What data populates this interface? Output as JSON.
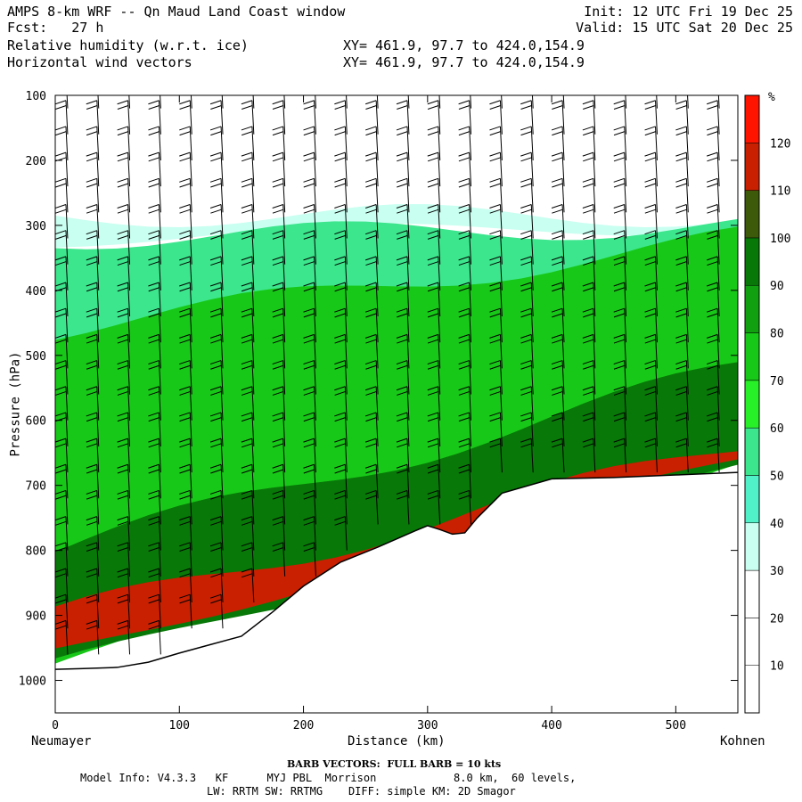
{
  "header": {
    "title": "AMPS 8-km WRF -- Qn Maud Land Coast window",
    "init": "Init: 12 UTC Fri 19 Dec 25",
    "fcst": "Fcst:   27 h",
    "valid": "Valid: 15 UTC Sat 20 Dec 25",
    "field1": "Relative humidity (w.r.t. ice)",
    "field2": "Horizontal wind vectors",
    "xy1": "XY= 461.9, 97.7 to 424.0,154.9",
    "xy2": "XY= 461.9, 97.7 to 424.0,154.9"
  },
  "footer": {
    "barb": "BARB VECTORS:  FULL BARB = 10 kts",
    "line1": "Model Info: V4.3.3   KF      MYJ PBL  Morrison            8.0 km,  60 levels,",
    "line2": "LW: RRTM SW: RRTMG    DIFF: simple KM: 2D Smagor"
  },
  "chart_data": {
    "type": "heatmap",
    "title": "Relative humidity (w.r.t. ice)",
    "xlabel": "Distance (km)",
    "ylabel": "Pressure (hPa)",
    "x_start_label": "Neumayer",
    "x_end_label": "Kohnen",
    "xlim": [
      0,
      550
    ],
    "ylim": [
      1050,
      100
    ],
    "x_ticks": [
      0,
      100,
      200,
      300,
      400,
      500
    ],
    "y_ticks": [
      100,
      200,
      300,
      400,
      500,
      600,
      700,
      800,
      900,
      1000
    ],
    "colorbar": {
      "unit": "%",
      "levels": [
        10,
        20,
        30,
        40,
        50,
        60,
        70,
        80,
        90,
        100,
        110,
        120
      ],
      "colors": [
        "#ffffff",
        "#ffffff",
        "#ffffff",
        "#c8fff0",
        "#50f0c8",
        "#3ce68c",
        "#28f028",
        "#18c818",
        "#10a010",
        "#087808",
        "#3c5a0a",
        "#c82000",
        "#ff1400"
      ]
    },
    "terrain_profile": {
      "x": [
        0,
        20,
        50,
        75,
        100,
        125,
        150,
        175,
        200,
        230,
        260,
        290,
        300,
        310,
        320,
        330,
        340,
        360,
        400,
        450,
        500,
        550
      ],
      "p": [
        983,
        982,
        980,
        972,
        958,
        945,
        932,
        895,
        855,
        818,
        795,
        770,
        762,
        768,
        775,
        773,
        750,
        712,
        690,
        688,
        684,
        680
      ]
    },
    "humidity_layers": [
      {
        "rh": 35,
        "bands": [
          [
            0,
            285,
            320
          ],
          [
            550,
            285,
            300
          ]
        ]
      },
      {
        "rh": 55,
        "bands": [
          [
            0,
            320,
            700
          ],
          [
            550,
            300,
            560
          ]
        ]
      },
      {
        "rh": 75,
        "bands": [
          [
            0,
            460,
            980
          ],
          [
            550,
            320,
            680
          ]
        ]
      },
      {
        "rh": 95,
        "bands": [
          [
            0,
            800,
            980
          ],
          [
            550,
            520,
            680
          ]
        ]
      },
      {
        "rh": 115,
        "bands": [
          [
            0,
            900,
            960
          ],
          [
            550,
            640,
            660
          ]
        ]
      }
    ],
    "wind_barbs": {
      "x": [
        10,
        35,
        60,
        85,
        110,
        135,
        160,
        185,
        210,
        235,
        260,
        285,
        310,
        335,
        360,
        385,
        410,
        435,
        460,
        485,
        510,
        535
      ],
      "levels": [
        120,
        160,
        200,
        240,
        280,
        320,
        360,
        400,
        440,
        480,
        520,
        560,
        600,
        640,
        680,
        720,
        760,
        800,
        840,
        880,
        920,
        960
      ],
      "direction_deg": 200,
      "speed_kts": 20
    }
  }
}
